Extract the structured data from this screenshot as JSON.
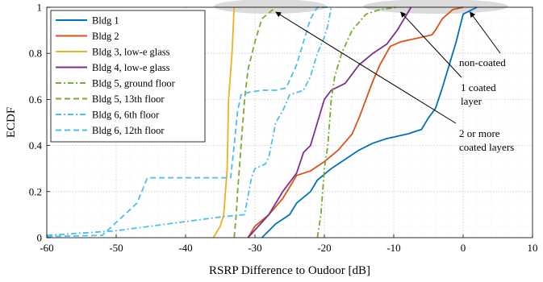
{
  "chart_data": {
    "type": "line",
    "xlabel": "RSRP Difference to Oudoor [dB]",
    "ylabel": "ECDF",
    "xlim": [
      -60,
      10
    ],
    "ylim": [
      0,
      1
    ],
    "x_ticks": [
      "-60",
      "-50",
      "-40",
      "-30",
      "-20",
      "-10",
      "0",
      "10"
    ],
    "y_ticks": [
      "0",
      "0.2",
      "0.4",
      "0.6",
      "0.8",
      "1"
    ],
    "grid": "dotted",
    "legend_position": "top-left",
    "series": [
      {
        "name": "Bldg 1",
        "color": "#0072BD",
        "dash": "solid",
        "points": [
          [
            -29,
            0
          ],
          [
            -28,
            0.03
          ],
          [
            -27,
            0.06
          ],
          [
            -25,
            0.1
          ],
          [
            -24,
            0.15
          ],
          [
            -22,
            0.2
          ],
          [
            -21,
            0.25
          ],
          [
            -19,
            0.3
          ],
          [
            -17,
            0.34
          ],
          [
            -15,
            0.38
          ],
          [
            -13,
            0.41
          ],
          [
            -11,
            0.43
          ],
          [
            -8,
            0.45
          ],
          [
            -6,
            0.47
          ],
          [
            -5,
            0.52
          ],
          [
            -4,
            0.56
          ],
          [
            -3,
            0.65
          ],
          [
            -2,
            0.75
          ],
          [
            -1,
            0.85
          ],
          [
            0,
            0.97
          ],
          [
            2,
            1.0
          ]
        ]
      },
      {
        "name": "Bldg 2",
        "color": "#D95319",
        "dash": "solid",
        "points": [
          [
            -31,
            0
          ],
          [
            -30,
            0.05
          ],
          [
            -28,
            0.1
          ],
          [
            -26,
            0.17
          ],
          [
            -25,
            0.22
          ],
          [
            -24,
            0.27
          ],
          [
            -22,
            0.29
          ],
          [
            -20,
            0.33
          ],
          [
            -18,
            0.38
          ],
          [
            -16,
            0.45
          ],
          [
            -15,
            0.52
          ],
          [
            -14,
            0.6
          ],
          [
            -13,
            0.68
          ],
          [
            -12,
            0.75
          ],
          [
            -10.5,
            0.83
          ],
          [
            -9,
            0.85
          ],
          [
            -6,
            0.87
          ],
          [
            -4.5,
            0.88
          ],
          [
            -4,
            0.9
          ],
          [
            -3,
            0.95
          ],
          [
            -1.5,
            0.99
          ],
          [
            0,
            1.0
          ]
        ]
      },
      {
        "name": "Bldg 3, low-e glass",
        "color": "#EDB120",
        "dash": "solid",
        "points": [
          [
            -36,
            0
          ],
          [
            -35,
            0.05
          ],
          [
            -34.5,
            0.1
          ],
          [
            -34,
            0.3
          ],
          [
            -33.8,
            0.6
          ],
          [
            -33.3,
            0.8
          ],
          [
            -33,
            1.0
          ]
        ]
      },
      {
        "name": "Bldg 4, low-e glass",
        "color": "#7E2F8E",
        "dash": "solid",
        "points": [
          [
            -31,
            0
          ],
          [
            -28,
            0.1
          ],
          [
            -26,
            0.2
          ],
          [
            -24,
            0.28
          ],
          [
            -23,
            0.37
          ],
          [
            -22,
            0.4
          ],
          [
            -21,
            0.5
          ],
          [
            -20,
            0.6
          ],
          [
            -19,
            0.64
          ],
          [
            -17,
            0.67
          ],
          [
            -15,
            0.75
          ],
          [
            -13,
            0.8
          ],
          [
            -11,
            0.84
          ],
          [
            -9.5,
            0.9
          ],
          [
            -8.5,
            0.95
          ],
          [
            -7.5,
            1.0
          ]
        ]
      },
      {
        "name": "Bldg 5, ground floor",
        "color": "#77AC30",
        "dash": "dashdot",
        "points": [
          [
            -21,
            0
          ],
          [
            -20.5,
            0.1
          ],
          [
            -20,
            0.3
          ],
          [
            -19.5,
            0.4
          ],
          [
            -19,
            0.6
          ],
          [
            -18.5,
            0.7
          ],
          [
            -17.5,
            0.8
          ],
          [
            -16,
            0.9
          ],
          [
            -14,
            0.97
          ],
          [
            -12,
            0.99
          ],
          [
            -9.5,
            1.0
          ]
        ]
      },
      {
        "name": "Bldg 5, 13th floor",
        "color": "#77AC30",
        "dash": "dash",
        "points": [
          [
            -33,
            0
          ],
          [
            -32.7,
            0.1
          ],
          [
            -32.5,
            0.2
          ],
          [
            -32,
            0.4
          ],
          [
            -31.5,
            0.6
          ],
          [
            -31,
            0.73
          ],
          [
            -30,
            0.85
          ],
          [
            -29,
            0.95
          ],
          [
            -27,
            1.0
          ]
        ]
      },
      {
        "name": "Bldg 6, 6th floor",
        "color": "#4DBEEE",
        "dash": "dashdot",
        "points": [
          [
            -60,
            0.01
          ],
          [
            -55,
            0.02
          ],
          [
            -50,
            0.03
          ],
          [
            -45,
            0.05
          ],
          [
            -40,
            0.07
          ],
          [
            -35,
            0.09
          ],
          [
            -31.5,
            0.1
          ],
          [
            -30.5,
            0.26
          ],
          [
            -30,
            0.3
          ],
          [
            -28.5,
            0.32
          ],
          [
            -28,
            0.35
          ],
          [
            -27,
            0.5
          ],
          [
            -26,
            0.55
          ],
          [
            -25,
            0.62
          ],
          [
            -23,
            0.64
          ],
          [
            -22,
            0.7
          ],
          [
            -21,
            0.8
          ],
          [
            -20,
            0.87
          ],
          [
            -19.5,
            0.92
          ],
          [
            -19,
            1.0
          ]
        ]
      },
      {
        "name": "Bldg 6, 12th floor",
        "color": "#4DBEEE",
        "dash": "dash",
        "points": [
          [
            -60,
            0.005
          ],
          [
            -52,
            0.01
          ],
          [
            -47,
            0.15
          ],
          [
            -45.5,
            0.26
          ],
          [
            -42,
            0.26
          ],
          [
            -37,
            0.26
          ],
          [
            -33.5,
            0.26
          ],
          [
            -33,
            0.4
          ],
          [
            -32.5,
            0.55
          ],
          [
            -32,
            0.62
          ],
          [
            -31,
            0.63
          ],
          [
            -29,
            0.64
          ],
          [
            -27,
            0.64
          ],
          [
            -25.5,
            0.65
          ],
          [
            -24,
            0.75
          ],
          [
            -23,
            0.85
          ],
          [
            -22,
            0.95
          ],
          [
            -21,
            1.0
          ],
          [
            -19,
            1.0
          ]
        ]
      }
    ],
    "annotations": [
      {
        "lines": [
          "non-coated"
        ],
        "arrow_to": [
          1.0,
          1.0
        ]
      },
      {
        "lines": [
          "1 coated",
          "layer"
        ],
        "arrow_to": [
          -9.0,
          1.0
        ]
      },
      {
        "lines": [
          "2 or more",
          "coated layers"
        ],
        "arrow_to": [
          -27.0,
          1.0
        ]
      }
    ]
  }
}
